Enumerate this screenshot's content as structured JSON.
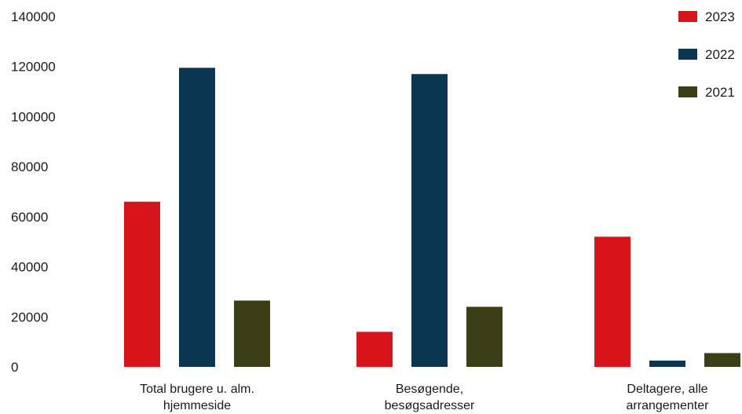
{
  "chart_data": {
    "type": "bar",
    "categories": [
      [
        "Total brugere u. alm.",
        "hjemmeside"
      ],
      [
        "Besøgende,",
        "besøgsadresser"
      ],
      [
        "Deltagere, alle",
        "arrangementer"
      ]
    ],
    "series": [
      {
        "name": "2023",
        "color": "#d7141a",
        "values": [
          66000,
          14000,
          52000
        ]
      },
      {
        "name": "2022",
        "color": "#0b3652",
        "values": [
          119500,
          117000,
          2500
        ]
      },
      {
        "name": "2021",
        "color": "#3c3f16",
        "values": [
          26500,
          24000,
          5500
        ]
      }
    ],
    "yticks": [
      "0",
      "20000",
      "40000",
      "60000",
      "80000",
      "100000",
      "120000",
      "140000"
    ],
    "ylim": [
      0,
      140000
    ],
    "grid": false,
    "legend": "top-right"
  }
}
